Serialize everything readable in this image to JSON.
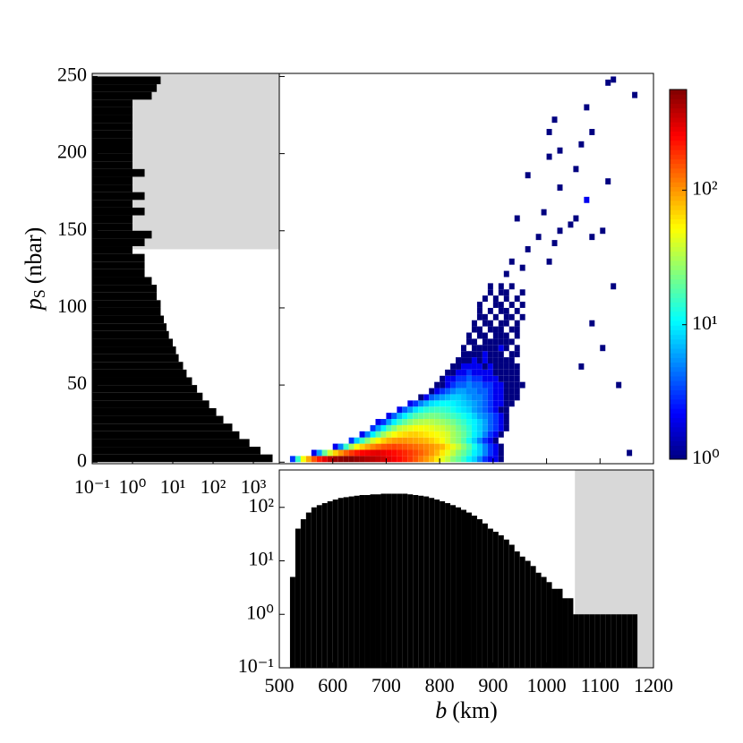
{
  "chart_data": [
    {
      "type": "histogram",
      "orientation": "horizontal",
      "color": "#000000",
      "shade_color": "#d8d8d8",
      "ylabel": {
        "symbol": "p",
        "subscript": "S",
        "unit": "(nbar)"
      },
      "xscale": "log",
      "xlim": [
        0.1,
        4400
      ],
      "xticks": [
        {
          "value": 0.1,
          "label": "10⁻¹"
        },
        {
          "value": 1,
          "label": "10⁰"
        },
        {
          "value": 10,
          "label": "10¹"
        },
        {
          "value": 100,
          "label": "10²"
        },
        {
          "value": 1000,
          "label": "10³"
        }
      ],
      "ylim": [
        -1,
        252
      ],
      "yticks": [
        0,
        50,
        100,
        150,
        200,
        250
      ],
      "shade": [
        138,
        252
      ],
      "bins": [
        0,
        5,
        10,
        15,
        20,
        25,
        30,
        35,
        40,
        45,
        50,
        55,
        60,
        65,
        70,
        75,
        80,
        85,
        90,
        95,
        100,
        105,
        110,
        115,
        120,
        125,
        130,
        135,
        140,
        145,
        150,
        155,
        160,
        165,
        170,
        175,
        180,
        185,
        190,
        195,
        200,
        205,
        210,
        215,
        220,
        225,
        230,
        235,
        240,
        245,
        250
      ],
      "counts": [
        3000,
        1500,
        800,
        450,
        300,
        180,
        120,
        80,
        55,
        40,
        30,
        22,
        18,
        14,
        12,
        10,
        8,
        7,
        6,
        5,
        5,
        4,
        4,
        3,
        2,
        2,
        2,
        1,
        2,
        3,
        1,
        1,
        2,
        1,
        2,
        1,
        1,
        2,
        1,
        1,
        1,
        1,
        1,
        1,
        1,
        1,
        1,
        3,
        4,
        5
      ]
    },
    {
      "type": "heatmap",
      "colormap": "jet",
      "cell_size": [
        10,
        4
      ],
      "rows": [
        {
          "y": 0,
          "x0": 520,
          "counts": [
            3,
            15,
            50,
            90,
            150,
            220,
            300,
            400,
            480,
            520,
            540,
            550,
            500,
            460,
            420,
            400,
            370,
            340,
            300,
            270,
            240,
            210,
            180,
            150,
            120,
            100,
            80,
            60,
            45,
            35,
            25,
            20,
            15,
            10,
            8,
            5,
            3,
            2,
            2,
            1
          ]
        },
        {
          "y": 4,
          "x0": 560,
          "counts": [
            2,
            6,
            20,
            40,
            70,
            100,
            140,
            180,
            220,
            250,
            270,
            290,
            300,
            280,
            260,
            240,
            220,
            200,
            180,
            160,
            140,
            120,
            100,
            80,
            60,
            45,
            35,
            25,
            20,
            15,
            10,
            8,
            5,
            3,
            2,
            1
          ]
        },
        {
          "y": 8,
          "x0": 600,
          "counts": [
            2,
            5,
            15,
            30,
            50,
            70,
            90,
            110,
            130,
            150,
            160,
            170,
            160,
            150,
            140,
            130,
            120,
            110,
            100,
            90,
            80,
            60,
            45,
            35,
            25,
            18,
            12,
            8,
            5,
            3,
            2,
            1
          ]
        },
        {
          "y": 12,
          "x0": 630,
          "counts": [
            3,
            8,
            15,
            25,
            40,
            55,
            70,
            85,
            95,
            100,
            100,
            95,
            90,
            85,
            80,
            70,
            60,
            50,
            40,
            30,
            25,
            18,
            12,
            8,
            5,
            3,
            2,
            1
          ]
        },
        {
          "y": 16,
          "x0": 650,
          "counts": [
            2,
            5,
            10,
            18,
            28,
            40,
            50,
            60,
            65,
            70,
            70,
            65,
            60,
            55,
            50,
            45,
            40,
            30,
            25,
            20,
            15,
            10,
            8,
            5,
            3,
            2,
            1
          ]
        },
        {
          "y": 20,
          "x0": 670,
          "counts": [
            3,
            6,
            10,
            18,
            25,
            35,
            40,
            45,
            50,
            50,
            48,
            45,
            40,
            38,
            32,
            28,
            22,
            18,
            14,
            10,
            8,
            6,
            4,
            3,
            2,
            1
          ]
        },
        {
          "y": 24,
          "x0": 680,
          "counts": [
            2,
            3,
            6,
            10,
            15,
            20,
            25,
            30,
            32,
            34,
            33,
            30,
            28,
            25,
            22,
            18,
            15,
            12,
            10,
            8,
            6,
            4,
            3,
            2,
            1
          ]
        },
        {
          "y": 28,
          "x0": 700,
          "counts": [
            2,
            4,
            7,
            10,
            14,
            18,
            20,
            22,
            23,
            22,
            20,
            18,
            16,
            14,
            12,
            10,
            8,
            6,
            5,
            4,
            3,
            2,
            1
          ]
        },
        {
          "y": 32,
          "x0": 720,
          "counts": [
            2,
            4,
            6,
            9,
            12,
            14,
            15,
            16,
            15,
            14,
            12,
            10,
            9,
            8,
            6,
            5,
            4,
            3,
            2,
            1,
            1
          ]
        },
        {
          "y": 36,
          "x0": 740,
          "counts": [
            2,
            3,
            5,
            7,
            9,
            10,
            11,
            11,
            10,
            9,
            8,
            7,
            6,
            5,
            4,
            3,
            2,
            2,
            1,
            1
          ]
        },
        {
          "y": 40,
          "x0": 760,
          "counts": [
            1,
            2,
            4,
            5,
            6,
            7,
            8,
            8,
            7,
            6,
            5,
            5,
            4,
            3,
            2,
            2,
            1,
            1,
            1
          ]
        },
        {
          "y": 44,
          "x0": 780,
          "counts": [
            1,
            2,
            3,
            4,
            5,
            6,
            6,
            5,
            5,
            4,
            4,
            3,
            2,
            2,
            1,
            1,
            1
          ]
        },
        {
          "y": 48,
          "x0": 790,
          "counts": [
            1,
            1,
            2,
            3,
            4,
            4,
            5,
            4,
            4,
            3,
            3,
            2,
            2,
            1,
            1,
            1,
            1
          ]
        },
        {
          "y": 52,
          "x0": 800,
          "counts": [
            1,
            2,
            2,
            3,
            3,
            4,
            3,
            3,
            2,
            2,
            2,
            1,
            1,
            1,
            1
          ]
        },
        {
          "y": 56,
          "x0": 810,
          "counts": [
            1,
            1,
            2,
            2,
            3,
            2,
            2,
            2,
            2,
            1,
            1,
            1,
            1,
            1
          ]
        },
        {
          "y": 60,
          "x0": 820,
          "counts": [
            1,
            1,
            2,
            2,
            2,
            2,
            1,
            2,
            1,
            1,
            1,
            1,
            1
          ]
        },
        {
          "y": 64,
          "x0": 830,
          "counts": [
            1,
            1,
            1,
            2,
            1,
            2,
            1,
            1,
            1,
            1,
            1
          ]
        },
        {
          "y": 68,
          "x0": 840,
          "counts": [
            1,
            1,
            1,
            1,
            2,
            1,
            1,
            1,
            null,
            1,
            1
          ]
        },
        {
          "y": 72,
          "x0": 840,
          "counts": [
            1,
            null,
            1,
            1,
            1,
            1,
            1,
            2,
            1,
            null,
            1
          ]
        },
        {
          "y": 76,
          "x0": 850,
          "counts": [
            1,
            1,
            null,
            1,
            1,
            1,
            1,
            1,
            1
          ]
        },
        {
          "y": 80,
          "x0": 850,
          "counts": [
            1,
            null,
            1,
            1,
            null,
            1,
            1,
            1,
            null,
            1
          ]
        },
        {
          "y": 84,
          "x0": 860,
          "counts": [
            1,
            1,
            null,
            1,
            1,
            1,
            null,
            1,
            1
          ]
        },
        {
          "y": 88,
          "x0": 860,
          "counts": [
            1,
            null,
            1,
            1,
            null,
            1,
            1,
            null,
            1
          ]
        },
        {
          "y": 92,
          "x0": 870,
          "counts": [
            1,
            1,
            null,
            1,
            null,
            1,
            1,
            null,
            1
          ]
        },
        {
          "y": 96,
          "x0": 870,
          "counts": [
            1,
            null,
            1,
            null,
            1,
            1,
            null,
            1
          ]
        },
        {
          "y": 100,
          "x0": 870,
          "counts": [
            1,
            null,
            null,
            1,
            1,
            null,
            1,
            null,
            1
          ]
        },
        {
          "y": 104,
          "x0": 880,
          "counts": [
            1,
            null,
            1,
            null,
            1,
            null,
            1
          ]
        },
        {
          "y": 108,
          "x0": 880,
          "counts": [
            null,
            1,
            null,
            1,
            1,
            null,
            null,
            1
          ]
        },
        {
          "y": 112,
          "x0": 890,
          "counts": [
            1,
            null,
            1,
            null,
            1
          ]
        }
      ],
      "cells": [
        [
          920,
          120,
          1
        ],
        [
          950,
          124,
          1
        ],
        [
          930,
          128,
          1
        ],
        [
          1000,
          128,
          1
        ],
        [
          960,
          136,
          1
        ],
        [
          1010,
          140,
          1
        ],
        [
          980,
          144,
          1
        ],
        [
          1020,
          148,
          1
        ],
        [
          1040,
          152,
          1
        ],
        [
          1080,
          144,
          1
        ],
        [
          1100,
          148,
          1
        ],
        [
          940,
          156,
          1
        ],
        [
          990,
          160,
          1
        ],
        [
          1050,
          156,
          1
        ],
        [
          1070,
          168,
          2
        ],
        [
          1020,
          176,
          1
        ],
        [
          1110,
          180,
          1
        ],
        [
          960,
          184,
          1
        ],
        [
          1050,
          188,
          1
        ],
        [
          1000,
          196,
          1
        ],
        [
          1020,
          200,
          1
        ],
        [
          1060,
          204,
          1
        ],
        [
          1080,
          212,
          1
        ],
        [
          1000,
          212,
          1
        ],
        [
          1010,
          220,
          1
        ],
        [
          1070,
          228,
          1
        ],
        [
          1110,
          244,
          1
        ],
        [
          1120,
          246,
          1
        ],
        [
          1160,
          236,
          1
        ],
        [
          1150,
          4,
          1
        ],
        [
          1120,
          112,
          1
        ],
        [
          1130,
          48,
          1
        ],
        [
          1080,
          88,
          1
        ],
        [
          1100,
          72,
          1
        ],
        [
          1060,
          60,
          1
        ]
      ],
      "colorbar": {
        "scale": "log",
        "lim": [
          1,
          560
        ],
        "ticks": [
          {
            "value": 1,
            "label": "10⁰"
          },
          {
            "value": 10,
            "label": "10¹"
          },
          {
            "value": 100,
            "label": "10²"
          }
        ]
      }
    },
    {
      "type": "histogram",
      "orientation": "vertical",
      "color": "#000000",
      "shade_color": "#d8d8d8",
      "xlabel": {
        "symbol": "b",
        "unit": "(km)"
      },
      "xlim": [
        500,
        1200
      ],
      "xticks": [
        500,
        600,
        700,
        800,
        900,
        1000,
        1100,
        1200
      ],
      "yscale": "log",
      "ylim": [
        0.1,
        500
      ],
      "yticks": [
        {
          "value": 0.1,
          "label": "10⁻¹"
        },
        {
          "value": 1,
          "label": "10⁰"
        },
        {
          "value": 10,
          "label": "10¹"
        },
        {
          "value": 100,
          "label": "10²"
        }
      ],
      "shade": [
        1053,
        1200
      ],
      "bins": [
        520,
        530,
        540,
        550,
        560,
        570,
        580,
        590,
        600,
        610,
        620,
        630,
        640,
        650,
        660,
        670,
        680,
        690,
        700,
        710,
        720,
        730,
        740,
        750,
        760,
        770,
        780,
        790,
        800,
        810,
        820,
        830,
        840,
        850,
        860,
        870,
        880,
        890,
        900,
        910,
        920,
        930,
        940,
        950,
        960,
        970,
        980,
        990,
        1000,
        1010,
        1020,
        1030,
        1040,
        1050,
        1060,
        1070,
        1080,
        1090,
        1100,
        1110,
        1120,
        1130,
        1140,
        1150,
        1160,
        1170
      ],
      "counts": [
        5,
        40,
        60,
        80,
        100,
        110,
        120,
        130,
        140,
        150,
        155,
        160,
        165,
        170,
        170,
        175,
        175,
        180,
        180,
        180,
        180,
        180,
        175,
        170,
        165,
        160,
        150,
        140,
        130,
        120,
        110,
        100,
        90,
        80,
        70,
        60,
        50,
        40,
        35,
        30,
        25,
        20,
        15,
        12,
        10,
        8,
        6,
        5,
        4,
        3,
        3,
        2,
        2,
        1,
        1,
        1,
        1,
        1,
        1,
        1,
        1,
        1,
        1,
        1,
        1
      ]
    }
  ]
}
